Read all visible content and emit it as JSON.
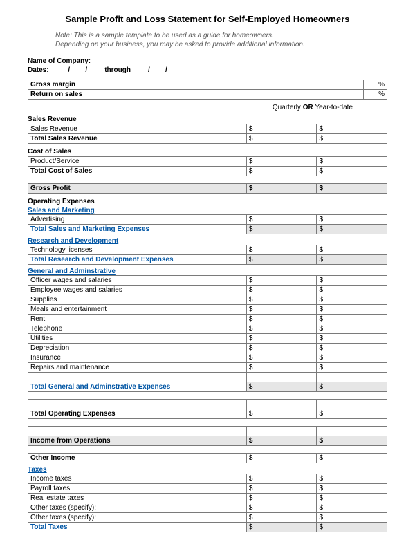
{
  "title": "Sample Profit and Loss Statement for Self-Employed Homeowners",
  "note_line1": "Note: This is a sample template to be used as a guide for homeowners.",
  "note_line2": "Depending on your business, you may be asked to provide additional information.",
  "company_label": "Name of Company:",
  "dates_label": "Dates:",
  "dates_sep": "through",
  "gross_margin": "Gross margin",
  "return_on_sales": "Return on sales",
  "pct": "%",
  "period_q": "Quarterly",
  "period_or": "OR",
  "period_y": "Year-to-date",
  "dollar": "$",
  "sections": {
    "sales_revenue": {
      "heading": "Sales Revenue",
      "rows": [
        "Sales Revenue"
      ],
      "total": "Total Sales Revenue"
    },
    "cost_of_sales": {
      "heading": "Cost of Sales",
      "rows": [
        "Product/Service"
      ],
      "total": "Total Cost of Sales"
    },
    "gross_profit": "Gross Profit",
    "operating_expenses": "Operating Expenses",
    "sales_marketing": {
      "heading": "Sales and Marketing",
      "rows": [
        "Advertising"
      ],
      "total": "Total Sales and Marketing Expenses"
    },
    "rd": {
      "heading": "Research and Development",
      "rows": [
        "Technology licenses"
      ],
      "total": "Total Research and Development Expenses"
    },
    "ga": {
      "heading": "General and Adminstrative",
      "rows": [
        "Officer wages and salaries",
        "Employee wages and salaries",
        "Supplies",
        "Meals and entertainment",
        "Rent",
        "Telephone",
        "Utilities",
        "Depreciation",
        "Insurance",
        "Repairs and maintenance"
      ],
      "total": "Total General and Adminstrative Expenses"
    },
    "total_operating": "Total Operating Expenses",
    "income_ops": "Income from Operations",
    "other_income": "Other Income",
    "taxes": {
      "heading": "Taxes",
      "rows": [
        "Income taxes",
        "Payroll taxes",
        "Real estate taxes",
        "Other taxes (specify):",
        "Other taxes (specify):"
      ],
      "total": "Total Taxes"
    }
  }
}
